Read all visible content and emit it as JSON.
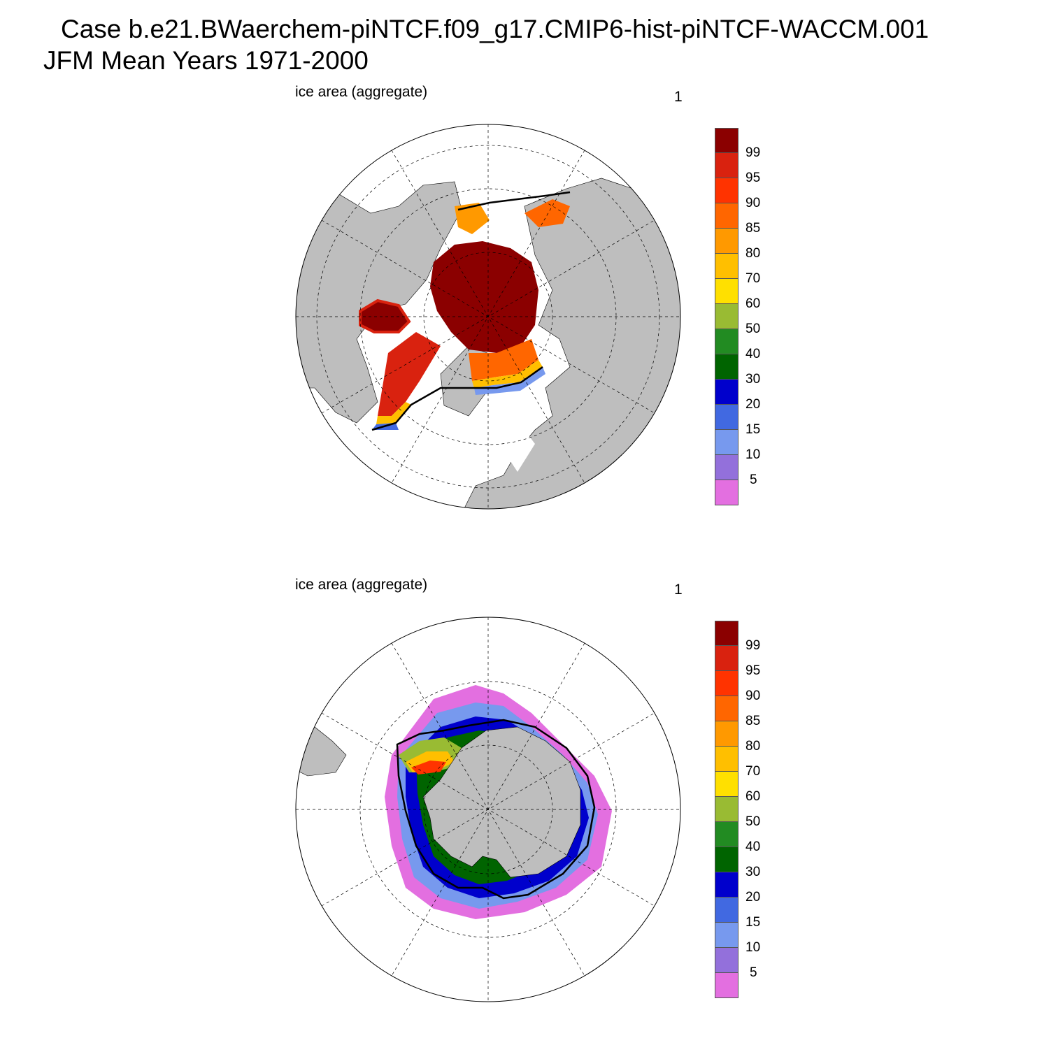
{
  "header": {
    "title_line1": "Case b.e21.BWaerchem-piNTCF.f09_g17.CMIP6-hist-piNTCF-WACCM.001",
    "title_line2": "JFM Mean    Years 1971-2000"
  },
  "panels": [
    {
      "id": "north",
      "variable_label": "ice area  (aggregate)",
      "units_label": "1",
      "hemisphere": "north"
    },
    {
      "id": "south",
      "variable_label": "ice area  (aggregate)",
      "units_label": "1",
      "hemisphere": "south"
    }
  ],
  "colorbar": {
    "labels": [
      "99",
      "95",
      "90",
      "85",
      "80",
      "70",
      "60",
      "50",
      "40",
      "30",
      "20",
      "15",
      "10",
      "5"
    ],
    "colors": [
      "#8b0000",
      "#d9220f",
      "#ff3300",
      "#ff6600",
      "#ff9900",
      "#ffbf00",
      "#ffe000",
      "#99bb33",
      "#228b22",
      "#006400",
      "#0000cc",
      "#4169e1",
      "#7799ee",
      "#9370db",
      "#e36fe0"
    ]
  },
  "map_colors": {
    "land": "#bebebe",
    "ocean": "#ffffff",
    "contour": "#000000",
    "graticule": "#000000"
  }
}
